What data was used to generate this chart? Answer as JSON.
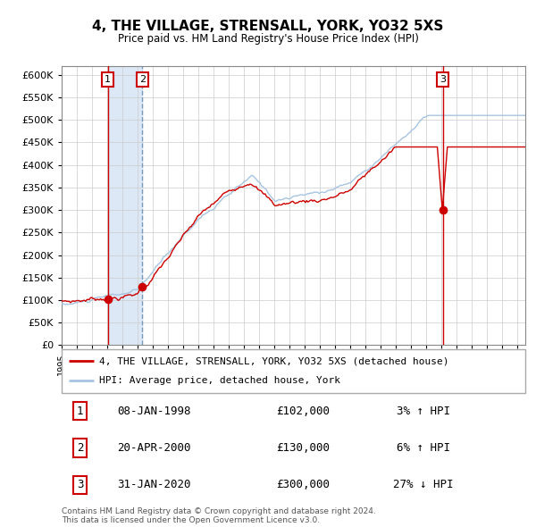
{
  "title": "4, THE VILLAGE, STRENSALL, YORK, YO32 5XS",
  "subtitle": "Price paid vs. HM Land Registry's House Price Index (HPI)",
  "xlim_start": 1995.0,
  "xlim_end": 2025.5,
  "ylim": [
    0,
    620000
  ],
  "yticks": [
    0,
    50000,
    100000,
    150000,
    200000,
    250000,
    300000,
    350000,
    400000,
    450000,
    500000,
    550000,
    600000
  ],
  "sale_dates": [
    1998.03,
    2000.31,
    2020.08
  ],
  "sale_prices": [
    102000,
    130000,
    300000
  ],
  "sale_labels": [
    "1",
    "2",
    "3"
  ],
  "vline_solid": [
    1998.03,
    2020.08
  ],
  "vline_dashed": [
    2000.31
  ],
  "shaded_region": [
    1998.03,
    2000.31
  ],
  "legend_line1": "4, THE VILLAGE, STRENSALL, YORK, YO32 5XS (detached house)",
  "legend_line2": "HPI: Average price, detached house, York",
  "table_data": [
    {
      "num": "1",
      "date": "08-JAN-1998",
      "price": "£102,000",
      "change": "3% ↑ HPI"
    },
    {
      "num": "2",
      "date": "20-APR-2000",
      "price": "£130,000",
      "change": "6% ↑ HPI"
    },
    {
      "num": "3",
      "date": "31-JAN-2020",
      "price": "£300,000",
      "change": "27% ↓ HPI"
    }
  ],
  "footnote": "Contains HM Land Registry data © Crown copyright and database right 2024.\nThis data is licensed under the Open Government Licence v3.0.",
  "hpi_color": "#a8c4e0",
  "price_color": "#cc0000",
  "dot_color": "#cc0000",
  "background_color": "#ffffff",
  "grid_color": "#cccccc",
  "shaded_color": "#dce8f5"
}
